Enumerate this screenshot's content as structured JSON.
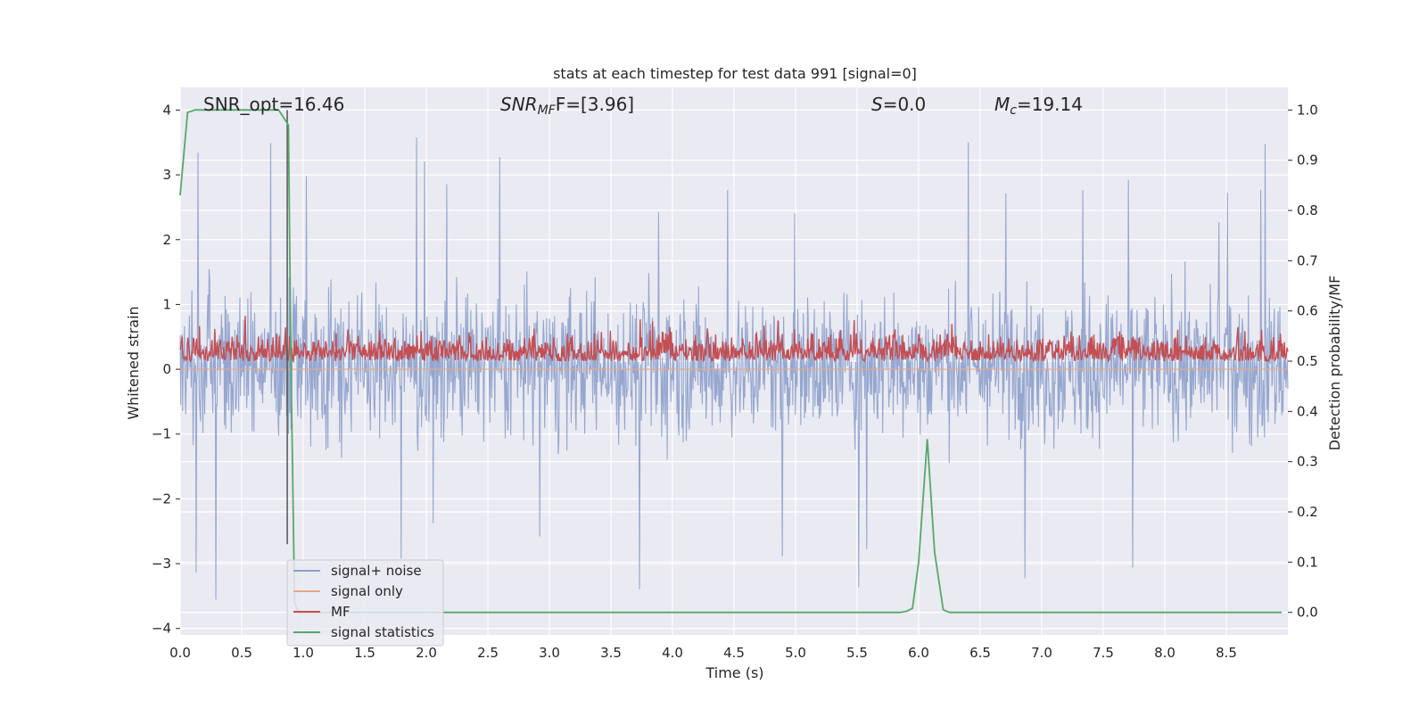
{
  "chart_data": {
    "type": "line",
    "title": "stats at each timestep for test data 991 [signal=0]",
    "xlabel": "Time (s)",
    "ylabel_left": "Whitened strain",
    "ylabel_right": "Detection probability/MF",
    "xlim": [
      0.0,
      9.0
    ],
    "ylim_left": [
      -4.1,
      4.35
    ],
    "ylim_right": [
      -0.045,
      1.045
    ],
    "x_ticks": [
      "0.0",
      "0.5",
      "1.0",
      "1.5",
      "2.0",
      "2.5",
      "3.0",
      "3.5",
      "4.0",
      "4.5",
      "5.0",
      "5.5",
      "6.0",
      "6.5",
      "7.0",
      "7.5",
      "8.0",
      "8.5"
    ],
    "x_tick_values": [
      0,
      0.5,
      1,
      1.5,
      2,
      2.5,
      3,
      3.5,
      4,
      4.5,
      5,
      5.5,
      6,
      6.5,
      7,
      7.5,
      8,
      8.5
    ],
    "y_ticks_left": [
      "4",
      "3",
      "2",
      "1",
      "0",
      "−1",
      "−2",
      "−3",
      "−4"
    ],
    "y_tick_values_left": [
      4,
      3,
      2,
      1,
      0,
      -1,
      -2,
      -3,
      -4
    ],
    "y_ticks_right": [
      "1.0",
      "0.9",
      "0.8",
      "0.7",
      "0.6",
      "0.5",
      "0.4",
      "0.3",
      "0.2",
      "0.1",
      "0.0"
    ],
    "y_tick_values_right": [
      1.0,
      0.9,
      0.8,
      0.7,
      0.6,
      0.5,
      0.4,
      0.3,
      0.2,
      0.1,
      0.0
    ],
    "grid": true,
    "legend_position": "lower-left",
    "annotations": {
      "snr_opt": "SNR_opt=16.46",
      "snr_mf_main": "SNR",
      "snr_mf_sub": "MF",
      "snr_mf_rest": "F=[3.96]",
      "s_main": "S",
      "s_rest": "=0.0",
      "mc_main": "M",
      "mc_sub": "c",
      "mc_rest": "=19.14"
    },
    "series": [
      {
        "name": "signal+ noise",
        "color": "#8da0cb",
        "axis": "left",
        "kind": "noise",
        "amplitude_envelope": {
          "typical_low": -1.5,
          "typical_high": 1.6,
          "peak_high": 4.0,
          "peak_low": -3.7
        }
      },
      {
        "name": "signal only",
        "color": "#e8a883",
        "axis": "left",
        "kind": "flat",
        "values": 0
      },
      {
        "name": "MF",
        "color": "#c44e52",
        "axis": "right",
        "kind": "noise",
        "amplitude_envelope": {
          "baseline": 0.5,
          "typical_high": 0.56,
          "peak_high": 0.6
        }
      },
      {
        "name": "signal statistics",
        "color": "#55a868",
        "axis": "right",
        "kind": "line",
        "x": [
          0.0,
          0.06,
          0.12,
          0.5,
          0.8,
          0.88,
          0.9,
          0.93,
          0.96,
          1.0,
          2.0,
          3.0,
          4.0,
          5.0,
          5.85,
          5.9,
          5.95,
          6.0,
          6.07,
          6.13,
          6.2,
          6.25,
          6.3,
          7.0,
          8.0,
          8.95
        ],
        "y": [
          0.83,
          0.995,
          1.0,
          1.0,
          1.0,
          0.97,
          0.5,
          0.02,
          0.0,
          0.0,
          0.0,
          0.0,
          0.0,
          0.0,
          0.0,
          0.002,
          0.008,
          0.1,
          0.345,
          0.12,
          0.005,
          0.0,
          0.0,
          0.0,
          0.0,
          0.0
        ]
      }
    ],
    "vertical_line": {
      "x": 0.87,
      "color": "#555555"
    }
  }
}
